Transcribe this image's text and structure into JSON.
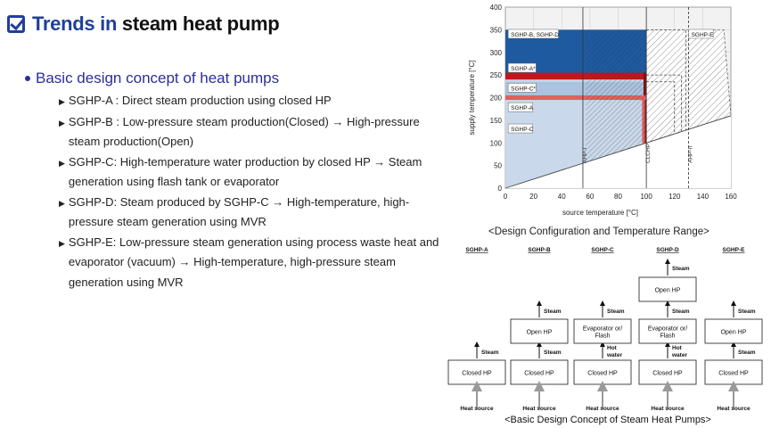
{
  "header": {
    "title_accent": "Trends in",
    "title_rest": "steam heat pump"
  },
  "section": {
    "title": "Basic design concept of heat pumps"
  },
  "bullets": [
    [
      "SGHP-A : Direct steam production using closed HP"
    ],
    [
      "SGHP-B : Low-pressure steam production(Closed) → High-pressure",
      "steam production(Open)"
    ],
    [
      "SGHP-C: High-temperature water production by closed HP → Steam",
      "generation using flash tank or evaporator"
    ],
    [
      "SGHP-D: Steam produced by SGHP-C → High-temperature, high-",
      "pressure steam generation using MVR"
    ],
    [
      "SGHP-E: Low-pressure steam generation using process waste heat and",
      "evaporator (vacuum) → High-temperature, high-pressure steam",
      "generation using MVR"
    ]
  ],
  "chart_data": {
    "type": "area",
    "xlabel": "source temperature [°C]",
    "ylabel": "supply temperature [°C]",
    "xlim": [
      0,
      160
    ],
    "ylim": [
      0,
      400
    ],
    "xticks": [
      0,
      20,
      40,
      60,
      80,
      100,
      120,
      140,
      160
    ],
    "yticks": [
      0,
      50,
      100,
      150,
      200,
      250,
      300,
      350,
      400
    ],
    "regions": [
      {
        "name": "SGHP-C",
        "x": [
          0,
          100
        ],
        "y_top": 250,
        "color": "#c9d8ea"
      },
      {
        "name": "SGHP-A",
        "x": [
          0,
          100
        ],
        "y_top": 200,
        "color": "#e06060"
      },
      {
        "name": "SGHP-C*",
        "x": [
          0,
          100
        ],
        "y_top": 250,
        "color": "#a9c3e0"
      },
      {
        "name": "SGHP-A*",
        "x": [
          0,
          100
        ],
        "y_top": 250,
        "color": "#c0171d"
      },
      {
        "name": "SGHP-B, SGHP-D",
        "x": [
          0,
          100
        ],
        "y_top": 350,
        "color": "#1e5aa0"
      },
      {
        "name": "SGHP-E",
        "x": [
          100,
          160
        ],
        "y_top": 350,
        "color": "hatched"
      }
    ],
    "lower_boundary": {
      "x": [
        0,
        160
      ],
      "y": [
        0,
        160
      ]
    },
    "vertical_lines": [
      {
        "label": "AHP-I",
        "x": 55
      },
      {
        "label": "CLCHP",
        "x": 100
      },
      {
        "label": "AHP-II",
        "x": 130
      }
    ],
    "region_labels": [
      "SGHP-B, SGHP-D",
      "SGHP-E",
      "SGHP-A*",
      "SGHP-C*",
      "SGHP-A",
      "SGHP-C"
    ]
  },
  "chart_caption": "<Design Configuration and Temperature Range>",
  "diagram": {
    "columns": [
      "SGHP-A",
      "SGHP-B",
      "SGHP-C",
      "SGHP-D",
      "SGHP-E"
    ],
    "closed_hp": "Closed HP",
    "open_hp": "Open HP",
    "evap": "Evaporator or/\nFlash",
    "steam": "Steam",
    "hot_water": "Hot\nwater",
    "heat_source": "Heat source",
    "caption": "<Basic Design Concept of Steam Heat Pumps>"
  }
}
